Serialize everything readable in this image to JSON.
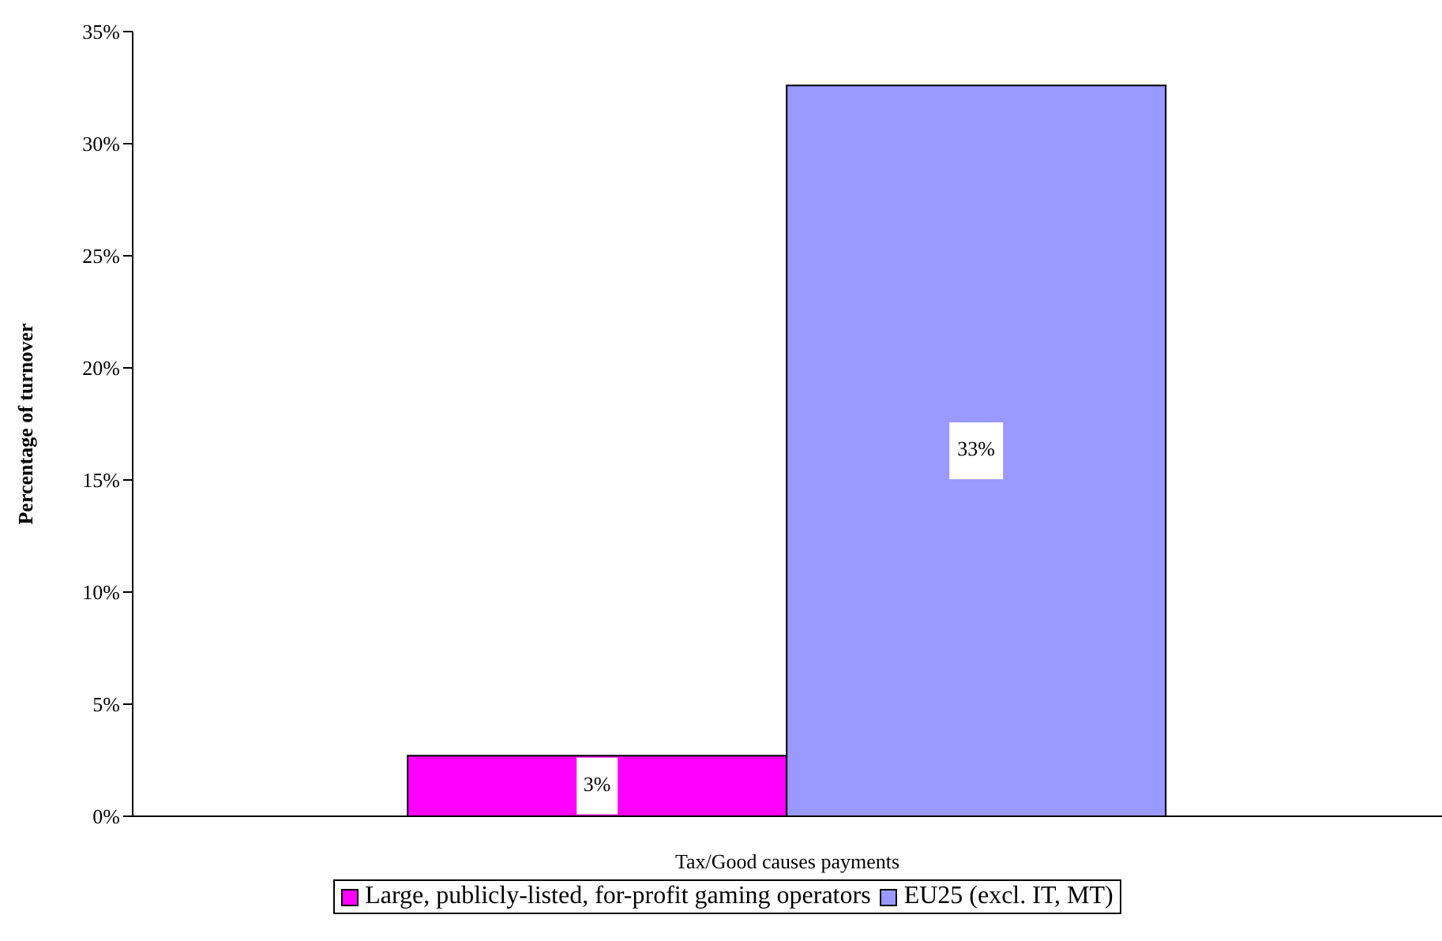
{
  "chart_data": {
    "type": "bar",
    "ylabel": "Percentage of turnover",
    "xlabel": null,
    "categories": [
      "Tax/Good causes payments"
    ],
    "series": [
      {
        "name": "Large, publicly-listed, for-profit gaming operators",
        "color": "#ff00ff",
        "values": [
          2.7
        ],
        "value_labels": [
          "3%"
        ]
      },
      {
        "name": "EU25 (excl. IT, MT)",
        "color": "#9999ff",
        "values": [
          32.6
        ],
        "value_labels": [
          "33%"
        ]
      }
    ],
    "ylim": [
      0,
      35
    ],
    "yticks": [
      {
        "value": 0,
        "label": "0%"
      },
      {
        "value": 5,
        "label": "5%"
      },
      {
        "value": 10,
        "label": "10%"
      },
      {
        "value": 15,
        "label": "15%"
      },
      {
        "value": 20,
        "label": "20%"
      },
      {
        "value": 25,
        "label": "25%"
      },
      {
        "value": 30,
        "label": "30%"
      },
      {
        "value": 35,
        "label": "35%"
      }
    ],
    "grid": false,
    "legend": "bottom"
  }
}
